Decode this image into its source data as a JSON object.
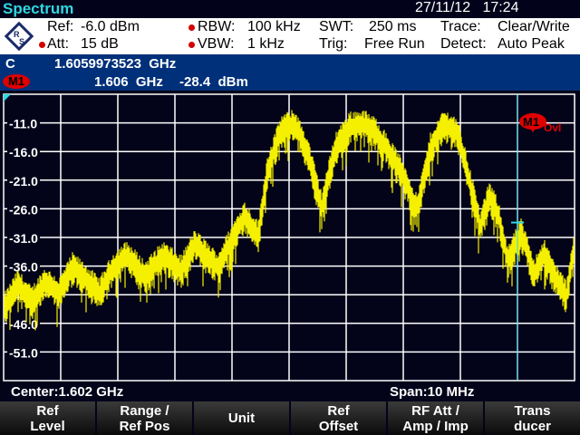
{
  "title": {
    "app": "Spectrum",
    "date": "27/11/12",
    "time": "17:24"
  },
  "settings": {
    "ref_label": "Ref:",
    "ref": "-6.0 dBm",
    "att_label": "Att:",
    "att": "15 dB",
    "rbw_label": "RBW:",
    "rbw": "100 kHz",
    "vbw_label": "VBW:",
    "vbw": "1 kHz",
    "swt_label": "SWT:",
    "swt": "250 ms",
    "trig_label": "Trig:",
    "trig": "Free Run",
    "trace_label": "Trace:",
    "trace": "Clear/Write",
    "detect_label": "Detect:",
    "detect": "Auto Peak"
  },
  "band": {
    "c_label": "C",
    "c_value": "1.6059973523  GHz",
    "marker_label": "M1",
    "marker_freq": "1.606  GHz",
    "marker_level": "-28.4  dBm"
  },
  "plot_marker": {
    "label": "M1",
    "ovl": "Ovl"
  },
  "footer": {
    "center": "Center:1.602 GHz",
    "span": "Span:10 MHz"
  },
  "softkeys": [
    [
      "Ref",
      "Level"
    ],
    [
      "Range /",
      "Ref Pos"
    ],
    [
      "Unit",
      ""
    ],
    [
      "Ref",
      "Offset"
    ],
    [
      "RF Att /",
      "Amp / Imp"
    ],
    [
      "Trans",
      "ducer"
    ]
  ],
  "colors": {
    "trace": "#f5f000",
    "marker": "#e00000",
    "cursor": "#2fd8e0",
    "band": "#00307a"
  },
  "chart_data": {
    "type": "line",
    "y_tick_labels": [
      "-11.0",
      "-16.0",
      "-21.0",
      "-26.0",
      "-31.0",
      "-36.0",
      "-41.0",
      "-46.0",
      "-51.0"
    ],
    "ylim": [
      -56,
      -6
    ],
    "xlim_mhz": [
      1597,
      1607
    ],
    "grid": true,
    "x_mhz": [
      1597.02,
      1597.25,
      1597.49,
      1597.73,
      1597.97,
      1598.21,
      1598.44,
      1598.68,
      1598.92,
      1599.16,
      1599.48,
      1599.79,
      1600.11,
      1600.35,
      1600.75,
      1600.98,
      1601.22,
      1601.46,
      1601.62,
      1601.86,
      1602.1,
      1602.33,
      1602.57,
      1602.81,
      1603.05,
      1603.29,
      1603.52,
      1603.76,
      1604.0,
      1604.24,
      1604.48,
      1604.71,
      1604.95,
      1605.19,
      1605.35,
      1605.51,
      1605.67,
      1605.83,
      1606.06,
      1606.3,
      1606.46,
      1606.62,
      1606.86,
      1607.0
    ],
    "y_dbm": [
      -43,
      -39,
      -42,
      -38.5,
      -40.5,
      -36,
      -38,
      -40.5,
      -36,
      -34,
      -37.5,
      -34,
      -36.5,
      -32,
      -36,
      -31.5,
      -27,
      -30.5,
      -19,
      -12,
      -11,
      -16,
      -25.5,
      -15,
      -11.5,
      -11,
      -12.5,
      -16,
      -20,
      -26,
      -15,
      -11,
      -12.5,
      -22,
      -29,
      -23.5,
      -27,
      -35,
      -30,
      -37,
      -33.5,
      -37,
      -41,
      -32
    ],
    "marker": {
      "x_mhz": 1606,
      "y_dbm": -28.4
    }
  }
}
